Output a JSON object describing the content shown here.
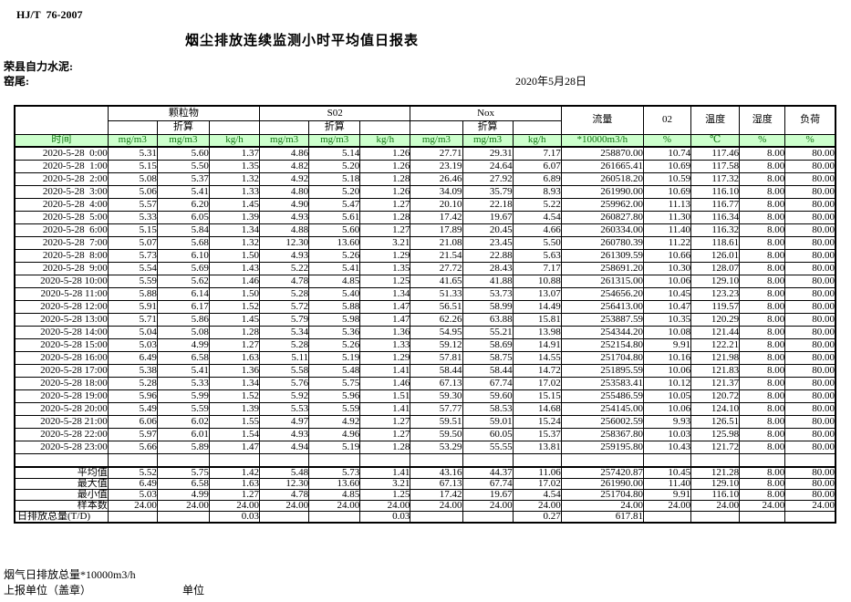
{
  "page": {
    "standard": "HJ/T  76-2007",
    "title": "烟尘排放连续监测小时平均值日报表",
    "company": "荣县自力水泥:",
    "location": "窑尾:",
    "date": "2020年5月28日",
    "footer_note": "烟气日排放总量*10000m3/h",
    "footer_report_unit": "上报单位（盖章）",
    "footer_unit": "单位"
  },
  "colors": {
    "header_bg": "#ccffcc",
    "header_text": "#117711",
    "border": "#000000"
  },
  "table": {
    "time_header": "时间",
    "groups": [
      {
        "label": "颗粒物",
        "sub": "折算",
        "units": [
          "mg/m3",
          "mg/m3",
          "kg/h"
        ]
      },
      {
        "label": "S02",
        "sub": "折算",
        "units": [
          "mg/m3",
          "mg/m3",
          "kg/h"
        ]
      },
      {
        "label": "Nox",
        "sub": "折算",
        "units": [
          "mg/m3",
          "mg/m3",
          "kg/h"
        ]
      }
    ],
    "singles": [
      {
        "label": "流量",
        "unit": "*10000m3/h"
      },
      {
        "label": "02",
        "unit": "%"
      },
      {
        "label": "温度",
        "unit": "℃"
      },
      {
        "label": "湿度",
        "unit": "%"
      },
      {
        "label": "负荷",
        "unit": "%"
      }
    ],
    "rows": [
      {
        "time": "2020-5-28  0:00",
        "values": [
          "5.31",
          "5.60",
          "1.37",
          "4.86",
          "5.14",
          "1.26",
          "27.71",
          "29.31",
          "7.17",
          "258870.00",
          "10.74",
          "117.46",
          "8.00",
          "80.00"
        ]
      },
      {
        "time": "2020-5-28  1:00",
        "values": [
          "5.15",
          "5.50",
          "1.35",
          "4.82",
          "5.20",
          "1.26",
          "23.19",
          "24.64",
          "6.07",
          "261665.41",
          "10.69",
          "117.58",
          "8.00",
          "80.00"
        ]
      },
      {
        "time": "2020-5-28  2:00",
        "values": [
          "5.08",
          "5.37",
          "1.32",
          "4.92",
          "5.18",
          "1.28",
          "26.46",
          "27.92",
          "6.89",
          "260518.20",
          "10.59",
          "117.32",
          "8.00",
          "80.00"
        ]
      },
      {
        "time": "2020-5-28  3:00",
        "values": [
          "5.06",
          "5.41",
          "1.33",
          "4.80",
          "5.20",
          "1.26",
          "34.09",
          "35.79",
          "8.93",
          "261990.00",
          "10.69",
          "116.10",
          "8.00",
          "80.00"
        ]
      },
      {
        "time": "2020-5-28  4:00",
        "values": [
          "5.57",
          "6.20",
          "1.45",
          "4.90",
          "5.47",
          "1.27",
          "20.10",
          "22.18",
          "5.22",
          "259962.00",
          "11.13",
          "116.77",
          "8.00",
          "80.00"
        ]
      },
      {
        "time": "2020-5-28  5:00",
        "values": [
          "5.33",
          "6.05",
          "1.39",
          "4.93",
          "5.61",
          "1.28",
          "17.42",
          "19.67",
          "4.54",
          "260827.80",
          "11.30",
          "116.34",
          "8.00",
          "80.00"
        ]
      },
      {
        "time": "2020-5-28  6:00",
        "values": [
          "5.15",
          "5.84",
          "1.34",
          "4.88",
          "5.60",
          "1.27",
          "17.89",
          "20.45",
          "4.66",
          "260334.00",
          "11.40",
          "116.32",
          "8.00",
          "80.00"
        ]
      },
      {
        "time": "2020-5-28  7:00",
        "values": [
          "5.07",
          "5.68",
          "1.32",
          "12.30",
          "13.60",
          "3.21",
          "21.08",
          "23.45",
          "5.50",
          "260780.39",
          "11.22",
          "118.61",
          "8.00",
          "80.00"
        ]
      },
      {
        "time": "2020-5-28  8:00",
        "values": [
          "5.73",
          "6.10",
          "1.50",
          "4.93",
          "5.26",
          "1.29",
          "21.54",
          "22.88",
          "5.63",
          "261309.59",
          "10.66",
          "126.01",
          "8.00",
          "80.00"
        ]
      },
      {
        "time": "2020-5-28  9:00",
        "values": [
          "5.54",
          "5.69",
          "1.43",
          "5.22",
          "5.41",
          "1.35",
          "27.72",
          "28.43",
          "7.17",
          "258691.20",
          "10.30",
          "128.07",
          "8.00",
          "80.00"
        ]
      },
      {
        "time": "2020-5-28 10:00",
        "values": [
          "5.59",
          "5.62",
          "1.46",
          "4.78",
          "4.85",
          "1.25",
          "41.65",
          "41.88",
          "10.88",
          "261315.00",
          "10.06",
          "129.10",
          "8.00",
          "80.00"
        ]
      },
      {
        "time": "2020-5-28 11:00",
        "values": [
          "5.88",
          "6.14",
          "1.50",
          "5.28",
          "5.40",
          "1.34",
          "51.33",
          "53.73",
          "13.07",
          "254656.20",
          "10.45",
          "123.23",
          "8.00",
          "80.00"
        ]
      },
      {
        "time": "2020-5-28 12:00",
        "values": [
          "5.91",
          "6.17",
          "1.52",
          "5.72",
          "5.88",
          "1.47",
          "56.51",
          "58.99",
          "14.49",
          "256413.00",
          "10.47",
          "119.57",
          "8.00",
          "80.00"
        ]
      },
      {
        "time": "2020-5-28 13:00",
        "values": [
          "5.71",
          "5.86",
          "1.45",
          "5.79",
          "5.98",
          "1.47",
          "62.26",
          "63.88",
          "15.81",
          "253887.59",
          "10.35",
          "120.29",
          "8.00",
          "80.00"
        ]
      },
      {
        "time": "2020-5-28 14:00",
        "values": [
          "5.04",
          "5.08",
          "1.28",
          "5.34",
          "5.36",
          "1.36",
          "54.95",
          "55.21",
          "13.98",
          "254344.20",
          "10.08",
          "121.44",
          "8.00",
          "80.00"
        ]
      },
      {
        "time": "2020-5-28 15:00",
        "values": [
          "5.03",
          "4.99",
          "1.27",
          "5.28",
          "5.26",
          "1.33",
          "59.12",
          "58.69",
          "14.91",
          "252154.80",
          "9.91",
          "122.21",
          "8.00",
          "80.00"
        ]
      },
      {
        "time": "2020-5-28 16:00",
        "values": [
          "6.49",
          "6.58",
          "1.63",
          "5.11",
          "5.19",
          "1.29",
          "57.81",
          "58.75",
          "14.55",
          "251704.80",
          "10.16",
          "121.98",
          "8.00",
          "80.00"
        ]
      },
      {
        "time": "2020-5-28 17:00",
        "values": [
          "5.38",
          "5.41",
          "1.36",
          "5.58",
          "5.48",
          "1.41",
          "58.44",
          "58.44",
          "14.72",
          "251895.59",
          "10.06",
          "121.83",
          "8.00",
          "80.00"
        ]
      },
      {
        "time": "2020-5-28 18:00",
        "values": [
          "5.28",
          "5.33",
          "1.34",
          "5.76",
          "5.75",
          "1.46",
          "67.13",
          "67.74",
          "17.02",
          "253583.41",
          "10.12",
          "121.37",
          "8.00",
          "80.00"
        ]
      },
      {
        "time": "2020-5-28 19:00",
        "values": [
          "5.96",
          "5.99",
          "1.52",
          "5.92",
          "5.96",
          "1.51",
          "59.30",
          "59.60",
          "15.15",
          "255486.59",
          "10.05",
          "120.72",
          "8.00",
          "80.00"
        ]
      },
      {
        "time": "2020-5-28 20:00",
        "values": [
          "5.49",
          "5.59",
          "1.39",
          "5.53",
          "5.59",
          "1.41",
          "57.77",
          "58.53",
          "14.68",
          "254145.00",
          "10.06",
          "124.10",
          "8.00",
          "80.00"
        ]
      },
      {
        "time": "2020-5-28 21:00",
        "values": [
          "6.06",
          "6.02",
          "1.55",
          "4.97",
          "4.92",
          "1.27",
          "59.51",
          "59.01",
          "15.24",
          "256002.59",
          "9.93",
          "126.51",
          "8.00",
          "80.00"
        ]
      },
      {
        "time": "2020-5-28 22:00",
        "values": [
          "5.97",
          "6.01",
          "1.54",
          "4.93",
          "4.96",
          "1.27",
          "59.50",
          "60.05",
          "15.37",
          "258367.80",
          "10.03",
          "125.98",
          "8.00",
          "80.00"
        ]
      },
      {
        "time": "2020-5-28 23:00",
        "values": [
          "5.66",
          "5.89",
          "1.47",
          "4.94",
          "5.19",
          "1.28",
          "53.29",
          "55.55",
          "13.81",
          "259195.80",
          "10.43",
          "121.72",
          "8.00",
          "80.00"
        ]
      }
    ],
    "summary": [
      {
        "label": "平均值",
        "values": [
          "5.52",
          "5.75",
          "1.42",
          "5.48",
          "5.73",
          "1.41",
          "43.16",
          "44.37",
          "11.06",
          "257420.87",
          "10.45",
          "121.28",
          "8.00",
          "80.00"
        ]
      },
      {
        "label": "最大值",
        "values": [
          "6.49",
          "6.58",
          "1.63",
          "12.30",
          "13.60",
          "3.21",
          "67.13",
          "67.74",
          "17.02",
          "261990.00",
          "11.40",
          "129.10",
          "8.00",
          "80.00"
        ]
      },
      {
        "label": "最小值",
        "values": [
          "5.03",
          "4.99",
          "1.27",
          "4.78",
          "4.85",
          "1.25",
          "17.42",
          "19.67",
          "4.54",
          "251704.80",
          "9.91",
          "116.10",
          "8.00",
          "80.00"
        ]
      },
      {
        "label": "样本数",
        "values": [
          "24.00",
          "24.00",
          "24.00",
          "24.00",
          "24.00",
          "24.00",
          "24.00",
          "24.00",
          "24.00",
          "24.00",
          "24.00",
          "24.00",
          "24.00",
          "24.00"
        ]
      },
      {
        "label": "日排放总量(T/D)",
        "values": [
          "",
          "",
          "0.03",
          "",
          "",
          "0.03",
          "",
          "",
          "0.27",
          "617.81",
          "",
          "",
          "",
          ""
        ]
      }
    ]
  }
}
